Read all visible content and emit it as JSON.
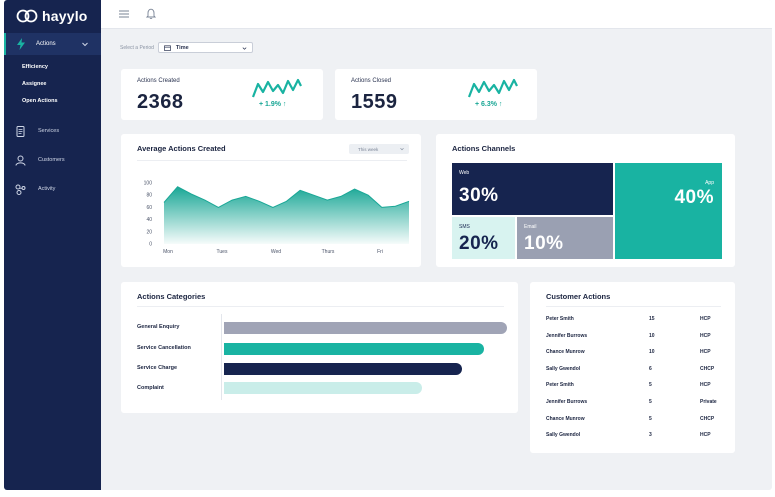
{
  "app": {
    "logo_text": "hayylo"
  },
  "sidebar": {
    "active": {
      "label": "Actions"
    },
    "sub_items": [
      "Efficiency",
      "Assignee",
      "Open Actions"
    ],
    "items": [
      {
        "label": "Services",
        "icon": "document-icon"
      },
      {
        "label": "Customers",
        "icon": "person-icon"
      },
      {
        "label": "Activity",
        "icon": "activity-icon"
      }
    ]
  },
  "period": {
    "label": "Select a Period",
    "value": "Time"
  },
  "stats": [
    {
      "label": "Actions Created",
      "value": "2368",
      "change": "+ 1.9% ↑"
    },
    {
      "label": "Actions Closed",
      "value": "1559",
      "change": "+ 6.3% ↑"
    }
  ],
  "avg_chart": {
    "title": "Average Actions Created",
    "range_select": "This week",
    "chart_data": {
      "type": "area",
      "categories": [
        "Mon",
        "Tues",
        "Wed",
        "Thurs",
        "Fri"
      ],
      "x": [
        0,
        0.5,
        1,
        1.5,
        2,
        2.5,
        3,
        3.5,
        4,
        4.5,
        5,
        5.5,
        6,
        6.5,
        7,
        7.5,
        8,
        8.5,
        9
      ],
      "values": [
        68,
        94,
        82,
        72,
        60,
        72,
        78,
        70,
        60,
        70,
        88,
        80,
        72,
        78,
        90,
        80,
        60,
        62,
        70
      ],
      "y_ticks": [
        0,
        20,
        40,
        60,
        80,
        100
      ],
      "ylim": [
        0,
        100
      ],
      "color": "#1aa796"
    }
  },
  "channels": {
    "title": "Actions Channels",
    "chart_data": {
      "type": "treemap",
      "items": [
        {
          "label": "Web",
          "value": "30%",
          "color": "#16244f"
        },
        {
          "label": "App",
          "value": "40%",
          "color": "#19b3a2"
        },
        {
          "label": "SMS",
          "value": "20%",
          "color": "#d8f3f0"
        },
        {
          "label": "Email",
          "value": "10%",
          "color": "#9aa0b2"
        }
      ]
    }
  },
  "categories": {
    "title": "Actions Categories",
    "chart_data": {
      "type": "bar",
      "orientation": "horizontal",
      "categories": [
        "General Enquiry",
        "Service Cancellation",
        "Service Charge",
        "Complaint"
      ],
      "values": [
        100,
        92,
        84,
        70
      ],
      "xlim": [
        0,
        100
      ],
      "colors": [
        "#a0a4b6",
        "#19b3a2",
        "#16244f",
        "#c9ede9"
      ]
    }
  },
  "customers": {
    "title": "Customer Actions",
    "rows": [
      {
        "name": "Peter Smith",
        "count": "15",
        "type": "HCP"
      },
      {
        "name": "Jennifer Burrows",
        "count": "10",
        "type": "HCP"
      },
      {
        "name": "Chance Munrow",
        "count": "10",
        "type": "HCP"
      },
      {
        "name": "Sally Gwendol",
        "count": "6",
        "type": "CHCP"
      },
      {
        "name": "Peter Smith",
        "count": "5",
        "type": "HCP"
      },
      {
        "name": "Jennifer Burrows",
        "count": "5",
        "type": "Private"
      },
      {
        "name": "Chance Munrow",
        "count": "5",
        "type": "CHCP"
      },
      {
        "name": "Sally Gwendol",
        "count": "3",
        "type": "HCP"
      }
    ]
  },
  "colors": {
    "sidebar": "#16244f",
    "accent": "#19b3a2",
    "background": "#eff1f4"
  }
}
